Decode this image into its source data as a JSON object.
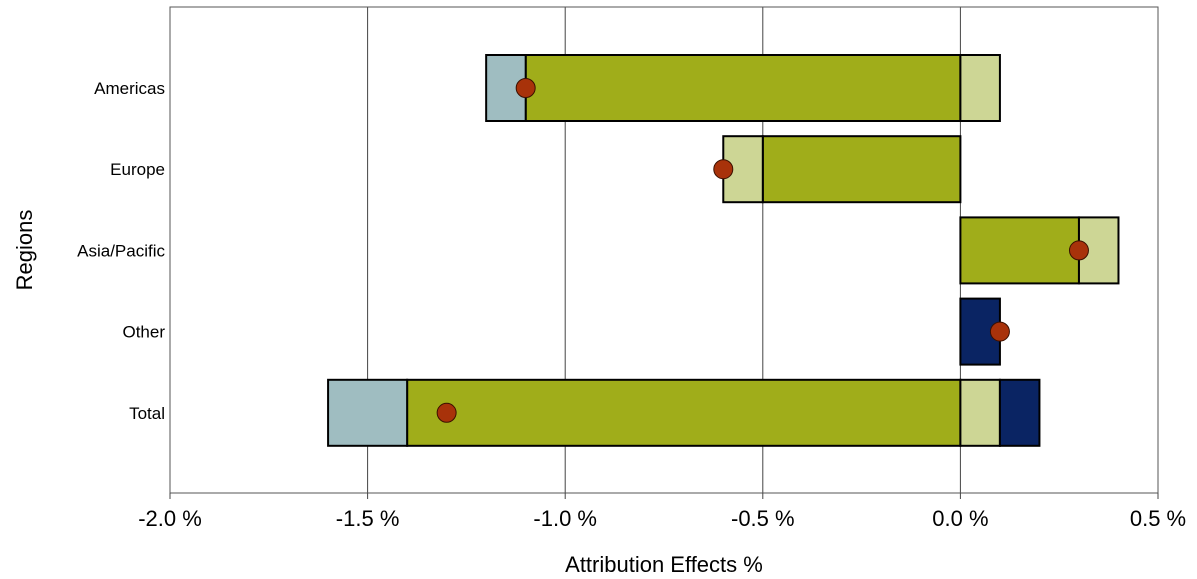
{
  "chart_data": {
    "type": "bar",
    "orientation": "horizontal",
    "stacked": true,
    "title": "",
    "xlabel": "Attribution Effects %",
    "ylabel": "Regions",
    "xlim": [
      -2.0,
      0.5
    ],
    "x_ticks": [
      -2.0,
      -1.5,
      -1.0,
      -0.5,
      0.0,
      0.5
    ],
    "x_tick_labels": [
      "-2.0 %",
      "-1.5 %",
      "-1.0 %",
      "-0.5 %",
      "0.0 %",
      "0.5 %"
    ],
    "grid": "vertical",
    "legend": "none",
    "categories": [
      "Americas",
      "Europe",
      "Asia/Pacific",
      "Other",
      "Total"
    ],
    "series": [
      {
        "color": "#A0AD1A",
        "values": [
          -1.1,
          -0.5,
          0.3,
          0.0,
          -1.4
        ]
      },
      {
        "color": "#CDD695",
        "values": [
          0.1,
          -0.1,
          0.1,
          0.0,
          0.1
        ]
      },
      {
        "color": "#9FBDC1",
        "values": [
          -0.1,
          0.0,
          0.0,
          0.0,
          -0.2
        ]
      },
      {
        "color": "#0A2463",
        "values": [
          0.0,
          0.0,
          0.0,
          0.1,
          0.1
        ]
      }
    ],
    "total_markers": {
      "color": "#A8320A",
      "values": [
        -1.1,
        -0.6,
        0.3,
        0.1,
        -1.3
      ]
    }
  }
}
